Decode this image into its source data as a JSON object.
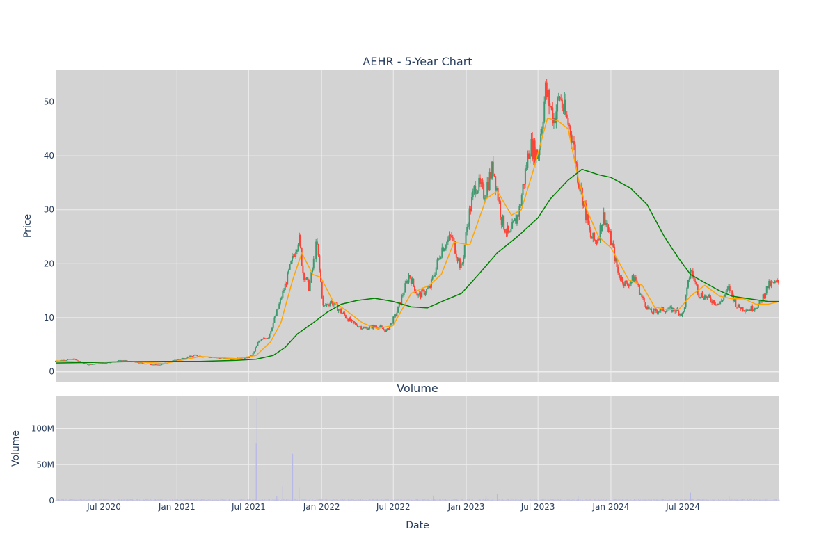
{
  "colors": {
    "plot_bg": "#d3d3d3",
    "grid": "#eeeeee",
    "text": "#2a3f5f",
    "candle_up": "#3d9970",
    "candle_down": "#ff4136",
    "ma_short": "#ffa500",
    "ma_long": "#008000",
    "volume_bar": "#b8b8e6"
  },
  "chart_data": [
    {
      "type": "candlestick",
      "title": "AEHR - 5-Year Chart",
      "ylabel": "Price",
      "ylim": [
        -2,
        56
      ],
      "yticks": [
        0,
        10,
        20,
        30,
        40,
        50
      ],
      "xlim": [
        "2020-03-01",
        "2025-03-01"
      ],
      "grid": true,
      "close_path": [
        [
          "2020-03-01",
          2.0
        ],
        [
          "2020-04-15",
          2.3
        ],
        [
          "2020-05-20",
          1.3
        ],
        [
          "2020-07-01",
          1.6
        ],
        [
          "2020-08-15",
          2.1
        ],
        [
          "2020-10-01",
          1.6
        ],
        [
          "2020-11-15",
          1.2
        ],
        [
          "2021-01-01",
          2.2
        ],
        [
          "2021-02-15",
          3.0
        ],
        [
          "2021-04-01",
          2.6
        ],
        [
          "2021-05-15",
          2.4
        ],
        [
          "2021-06-25",
          2.5
        ],
        [
          "2021-07-10",
          3.0
        ],
        [
          "2021-07-25",
          5.5
        ],
        [
          "2021-08-20",
          6.5
        ],
        [
          "2021-09-10",
          11.0
        ],
        [
          "2021-10-01",
          16.0
        ],
        [
          "2021-10-20",
          21.0
        ],
        [
          "2021-11-05",
          25.0
        ],
        [
          "2021-11-15",
          18.5
        ],
        [
          "2021-12-01",
          15.5
        ],
        [
          "2021-12-20",
          24.0
        ],
        [
          "2022-01-05",
          12.0
        ],
        [
          "2022-01-25",
          13.0
        ],
        [
          "2022-02-20",
          11.0
        ],
        [
          "2022-03-20",
          9.0
        ],
        [
          "2022-04-20",
          8.0
        ],
        [
          "2022-05-20",
          8.5
        ],
        [
          "2022-06-15",
          7.5
        ],
        [
          "2022-07-10",
          11.0
        ],
        [
          "2022-08-10",
          18.0
        ],
        [
          "2022-09-01",
          14.0
        ],
        [
          "2022-10-01",
          15.5
        ],
        [
          "2022-11-01",
          23.0
        ],
        [
          "2022-11-25",
          25.0
        ],
        [
          "2022-12-20",
          19.0
        ],
        [
          "2023-01-05",
          28.0
        ],
        [
          "2023-01-25",
          35.0
        ],
        [
          "2023-02-15",
          33.0
        ],
        [
          "2023-03-10",
          38.0
        ],
        [
          "2023-04-01",
          28.0
        ],
        [
          "2023-04-20",
          25.0
        ],
        [
          "2023-05-15",
          30.0
        ],
        [
          "2023-06-10",
          42.0
        ],
        [
          "2023-07-01",
          40.0
        ],
        [
          "2023-07-20",
          52.0
        ],
        [
          "2023-08-10",
          47.0
        ],
        [
          "2023-08-25",
          51.0
        ],
        [
          "2023-09-10",
          47.0
        ],
        [
          "2023-09-25",
          44.0
        ],
        [
          "2023-10-10",
          36.0
        ],
        [
          "2023-10-25",
          31.0
        ],
        [
          "2023-11-10",
          25.0
        ],
        [
          "2023-11-25",
          24.0
        ],
        [
          "2023-12-15",
          29.0
        ],
        [
          "2024-01-05",
          23.0
        ],
        [
          "2024-01-20",
          18.0
        ],
        [
          "2024-02-10",
          16.0
        ],
        [
          "2024-03-01",
          17.5
        ],
        [
          "2024-03-20",
          13.5
        ],
        [
          "2024-04-10",
          11.0
        ],
        [
          "2024-05-10",
          11.5
        ],
        [
          "2024-06-10",
          11.5
        ],
        [
          "2024-07-01",
          10.5
        ],
        [
          "2024-07-20",
          19.0
        ],
        [
          "2024-08-10",
          14.5
        ],
        [
          "2024-09-05",
          13.5
        ],
        [
          "2024-10-01",
          12.5
        ],
        [
          "2024-10-25",
          15.5
        ],
        [
          "2024-11-15",
          12.0
        ],
        [
          "2024-12-15",
          11.5
        ],
        [
          "2025-01-10",
          12.5
        ],
        [
          "2025-02-01",
          16.0
        ],
        [
          "2025-03-01",
          16.5
        ]
      ],
      "series": [
        {
          "style": "line",
          "color": "#ffa500",
          "points": [
            [
              "2020-03-01",
              2.0
            ],
            [
              "2020-06-01",
              1.7
            ],
            [
              "2020-09-01",
              1.9
            ],
            [
              "2020-12-01",
              1.5
            ],
            [
              "2021-03-01",
              2.8
            ],
            [
              "2021-06-01",
              2.4
            ],
            [
              "2021-07-20",
              3.0
            ],
            [
              "2021-08-25",
              5.5
            ],
            [
              "2021-09-20",
              9.0
            ],
            [
              "2021-10-20",
              17.0
            ],
            [
              "2021-11-12",
              22.0
            ],
            [
              "2021-12-10",
              18.0
            ],
            [
              "2021-12-30",
              17.5
            ],
            [
              "2022-01-30",
              13.0
            ],
            [
              "2022-03-01",
              11.5
            ],
            [
              "2022-04-15",
              9.0
            ],
            [
              "2022-05-20",
              8.0
            ],
            [
              "2022-06-30",
              8.5
            ],
            [
              "2022-08-15",
              14.5
            ],
            [
              "2022-09-30",
              16.0
            ],
            [
              "2022-10-30",
              18.0
            ],
            [
              "2022-12-01",
              24.0
            ],
            [
              "2023-01-10",
              23.5
            ],
            [
              "2023-02-20",
              32.0
            ],
            [
              "2023-03-20",
              33.5
            ],
            [
              "2023-04-25",
              29.0
            ],
            [
              "2023-05-20",
              30.0
            ],
            [
              "2023-06-20",
              37.5
            ],
            [
              "2023-07-25",
              47.0
            ],
            [
              "2023-08-20",
              46.5
            ],
            [
              "2023-09-15",
              45.0
            ],
            [
              "2023-10-10",
              36.0
            ],
            [
              "2023-11-01",
              30.0
            ],
            [
              "2023-12-01",
              25.0
            ],
            [
              "2024-01-01",
              23.0
            ],
            [
              "2024-02-15",
              17.0
            ],
            [
              "2024-03-20",
              16.0
            ],
            [
              "2024-04-20",
              12.0
            ],
            [
              "2024-05-20",
              11.5
            ],
            [
              "2024-06-20",
              11.5
            ],
            [
              "2024-07-20",
              14.0
            ],
            [
              "2024-08-25",
              16.0
            ],
            [
              "2024-10-01",
              14.0
            ],
            [
              "2024-11-01",
              13.5
            ],
            [
              "2024-12-01",
              13.5
            ],
            [
              "2025-01-01",
              12.5
            ],
            [
              "2025-02-01",
              12.5
            ],
            [
              "2025-03-01",
              13.0
            ]
          ]
        },
        {
          "style": "line",
          "color": "#008000",
          "points": [
            [
              "2020-03-01",
              1.6
            ],
            [
              "2020-06-01",
              1.7
            ],
            [
              "2020-09-01",
              1.85
            ],
            [
              "2020-12-01",
              1.9
            ],
            [
              "2021-03-01",
              1.9
            ],
            [
              "2021-06-01",
              2.1
            ],
            [
              "2021-07-20",
              2.3
            ],
            [
              "2021-09-01",
              3.0
            ],
            [
              "2021-10-01",
              4.5
            ],
            [
              "2021-11-01",
              7.0
            ],
            [
              "2021-12-10",
              9.0
            ],
            [
              "2022-01-15",
              11.0
            ],
            [
              "2022-02-20",
              12.5
            ],
            [
              "2022-04-01",
              13.2
            ],
            [
              "2022-05-15",
              13.6
            ],
            [
              "2022-07-01",
              13.0
            ],
            [
              "2022-08-15",
              12.0
            ],
            [
              "2022-09-25",
              11.8
            ],
            [
              "2022-11-01",
              13.0
            ],
            [
              "2022-12-20",
              14.5
            ],
            [
              "2023-02-01",
              18.0
            ],
            [
              "2023-03-20",
              22.0
            ],
            [
              "2023-05-10",
              25.0
            ],
            [
              "2023-07-01",
              28.5
            ],
            [
              "2023-08-01",
              32.0
            ],
            [
              "2023-09-15",
              35.5
            ],
            [
              "2023-10-20",
              37.5
            ],
            [
              "2023-12-01",
              36.5
            ],
            [
              "2024-01-01",
              36.0
            ],
            [
              "2024-02-20",
              34.0
            ],
            [
              "2024-04-01",
              31.0
            ],
            [
              "2024-05-15",
              25.0
            ],
            [
              "2024-06-20",
              21.0
            ],
            [
              "2024-07-20",
              18.0
            ],
            [
              "2024-08-25",
              16.5
            ],
            [
              "2024-10-01",
              15.0
            ],
            [
              "2024-11-01",
              14.0
            ],
            [
              "2024-12-15",
              13.5
            ],
            [
              "2025-02-01",
              13.0
            ],
            [
              "2025-03-01",
              13.0
            ]
          ]
        }
      ]
    },
    {
      "type": "bar",
      "title": "Volume",
      "ylabel": "Volume",
      "xlabel": "Date",
      "ylim": [
        0,
        145000000
      ],
      "yticks": [
        {
          "value": 0,
          "label": "0"
        },
        {
          "value": 50000000,
          "label": "50M"
        },
        {
          "value": 100000000,
          "label": "100M"
        }
      ],
      "xticks": [
        {
          "value": "2020-07-01",
          "label": "Jul 2020"
        },
        {
          "value": "2021-01-01",
          "label": "Jan 2021"
        },
        {
          "value": "2021-07-01",
          "label": "Jul 2021"
        },
        {
          "value": "2022-01-01",
          "label": "Jan 2022"
        },
        {
          "value": "2022-07-01",
          "label": "Jul 2022"
        },
        {
          "value": "2023-01-01",
          "label": "Jan 2023"
        },
        {
          "value": "2023-07-01",
          "label": "Jul 2023"
        },
        {
          "value": "2024-01-01",
          "label": "Jan 2024"
        },
        {
          "value": "2024-07-01",
          "label": "Jul 2024"
        }
      ],
      "baseline_volume": 1200000,
      "spikes": [
        [
          "2021-07-20",
          80000000
        ],
        [
          "2021-07-22",
          142000000
        ],
        [
          "2021-09-10",
          6000000
        ],
        [
          "2021-09-25",
          20000000
        ],
        [
          "2021-10-20",
          65000000
        ],
        [
          "2021-11-05",
          18000000
        ],
        [
          "2022-10-10",
          7000000
        ],
        [
          "2023-02-20",
          6000000
        ],
        [
          "2023-03-20",
          9000000
        ],
        [
          "2023-10-10",
          7000000
        ],
        [
          "2024-07-20",
          11000000
        ],
        [
          "2024-10-25",
          7000000
        ]
      ],
      "grid": true
    }
  ]
}
